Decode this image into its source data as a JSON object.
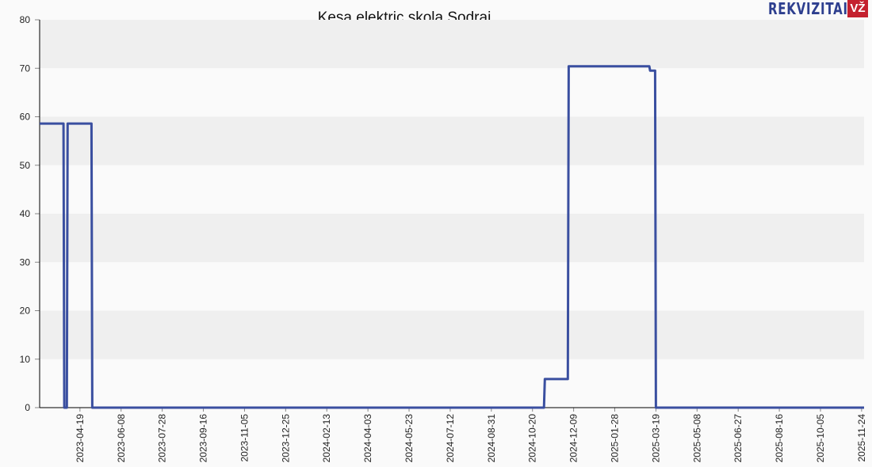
{
  "chart_data": {
    "type": "line",
    "title": "Kesa elektric skola Sodrai",
    "xlabel": "",
    "ylabel": "",
    "ylim": [
      0,
      80
    ],
    "yticks": [
      0,
      10,
      20,
      30,
      40,
      50,
      60,
      70,
      80
    ],
    "xlim": [
      "2023-03-01",
      "2025-11-27"
    ],
    "xticks": [
      "2023-04-19",
      "2023-06-08",
      "2023-07-28",
      "2023-09-16",
      "2023-11-05",
      "2023-12-25",
      "2024-02-13",
      "2024-04-03",
      "2024-05-23",
      "2024-07-12",
      "2024-08-31",
      "2024-10-20",
      "2024-12-09",
      "2025-01-28",
      "2025-03-19",
      "2025-05-08",
      "2025-06-27",
      "2025-08-16",
      "2025-10-05",
      "2025-11-24"
    ],
    "grid": "horizontal bands",
    "line_color": "#3a4fa0",
    "series": [
      {
        "points": [
          [
            "2023-03-01",
            58.6
          ],
          [
            "2023-03-30",
            58.6
          ],
          [
            "2023-03-31",
            0
          ],
          [
            "2023-04-03",
            0
          ],
          [
            "2023-04-04",
            58.6
          ],
          [
            "2023-05-03",
            58.6
          ],
          [
            "2023-05-04",
            0
          ],
          [
            "2024-11-03",
            0
          ],
          [
            "2024-11-04",
            5.9
          ],
          [
            "2024-12-02",
            5.9
          ],
          [
            "2024-12-03",
            70.4
          ],
          [
            "2025-03-11",
            70.4
          ],
          [
            "2025-03-12",
            69.5
          ],
          [
            "2025-03-18",
            69.5
          ],
          [
            "2025-03-19",
            0
          ],
          [
            "2025-11-27",
            0
          ]
        ]
      }
    ]
  },
  "logo": {
    "text": "REKVIZITAI",
    "badge": "VŽ"
  }
}
